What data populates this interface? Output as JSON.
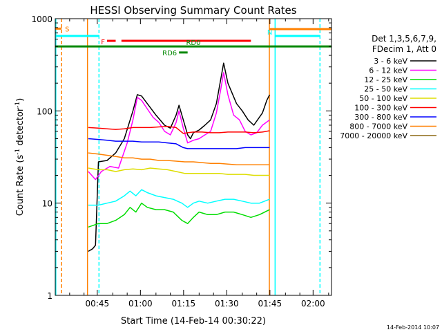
{
  "chart_data": {
    "type": "line",
    "title": "HESSI Observing Summary Count Rates",
    "xlabel": "Start Time (14-Feb-14 00:30:22)",
    "ylabel_parts": {
      "main": "Count Rate (s",
      "sup1": "-1",
      "mid": " detector",
      "sup2": "-1",
      "end": ")"
    },
    "x_unit": "minutes after 00:30:22",
    "xlim": [
      0,
      96
    ],
    "ylim": [
      1,
      1000
    ],
    "yscale": "log",
    "x_ticks": [
      {
        "x": 14.6,
        "label": "00:45"
      },
      {
        "x": 29.6,
        "label": "01:00"
      },
      {
        "x": 44.6,
        "label": "01:15"
      },
      {
        "x": 59.6,
        "label": "01:30"
      },
      {
        "x": 74.6,
        "label": "01:45"
      },
      {
        "x": 89.6,
        "label": "02:00"
      }
    ],
    "y_ticks": [
      {
        "y": 1,
        "label": "1"
      },
      {
        "y": 10,
        "label": "10"
      },
      {
        "y": 100,
        "label": "100"
      },
      {
        "y": 1000,
        "label": "1000"
      }
    ],
    "legend_header": [
      "Det 1,3,5,6,7,9,",
      "FDecim 1, Att 0"
    ],
    "legend_placement": "right",
    "series": [
      {
        "name": "3 - 6 keV",
        "color": "#000000",
        "points": [
          [
            11.5,
            3.0
          ],
          [
            13,
            3.2
          ],
          [
            14,
            3.5
          ],
          [
            15,
            28
          ],
          [
            18,
            29
          ],
          [
            21,
            35
          ],
          [
            24,
            50
          ],
          [
            27,
            100
          ],
          [
            28.5,
            150
          ],
          [
            30,
            145
          ],
          [
            32,
            120
          ],
          [
            35,
            90
          ],
          [
            38,
            70
          ],
          [
            40,
            65
          ],
          [
            42,
            90
          ],
          [
            43,
            115
          ],
          [
            44.5,
            80
          ],
          [
            46,
            55
          ],
          [
            47,
            50
          ],
          [
            48,
            58
          ],
          [
            50,
            62
          ],
          [
            52,
            70
          ],
          [
            54,
            80
          ],
          [
            56,
            120
          ],
          [
            57.5,
            220
          ],
          [
            58.5,
            330
          ],
          [
            60,
            200
          ],
          [
            63,
            120
          ],
          [
            65,
            100
          ],
          [
            67,
            80
          ],
          [
            69,
            70
          ],
          [
            72,
            95
          ],
          [
            73.5,
            130
          ],
          [
            74.5,
            150
          ]
        ]
      },
      {
        "name": "6 - 12 keV",
        "color": "#ff00ff",
        "points": [
          [
            11.5,
            22
          ],
          [
            14,
            18
          ],
          [
            16,
            22
          ],
          [
            19,
            25
          ],
          [
            22,
            24
          ],
          [
            25,
            45
          ],
          [
            27,
            80
          ],
          [
            28.5,
            140
          ],
          [
            30,
            130
          ],
          [
            32,
            105
          ],
          [
            34,
            85
          ],
          [
            36,
            75
          ],
          [
            38,
            60
          ],
          [
            40,
            55
          ],
          [
            42,
            75
          ],
          [
            43,
            100
          ],
          [
            44.5,
            65
          ],
          [
            46,
            45
          ],
          [
            48,
            48
          ],
          [
            50,
            50
          ],
          [
            52,
            55
          ],
          [
            54,
            60
          ],
          [
            56,
            95
          ],
          [
            57.5,
            170
          ],
          [
            58.5,
            260
          ],
          [
            60,
            150
          ],
          [
            62,
            90
          ],
          [
            64,
            80
          ],
          [
            66,
            60
          ],
          [
            68,
            55
          ],
          [
            70,
            58
          ],
          [
            72,
            70
          ],
          [
            74.5,
            80
          ]
        ]
      },
      {
        "name": "12 - 25 keV",
        "color": "#00dd00",
        "points": [
          [
            11.5,
            5.5
          ],
          [
            15,
            6
          ],
          [
            18,
            6
          ],
          [
            21,
            6.5
          ],
          [
            24,
            7.5
          ],
          [
            26,
            9
          ],
          [
            28,
            8
          ],
          [
            30,
            10
          ],
          [
            32,
            9
          ],
          [
            35,
            8.5
          ],
          [
            38,
            8.5
          ],
          [
            41,
            8
          ],
          [
            44,
            6.5
          ],
          [
            46,
            6
          ],
          [
            48,
            7
          ],
          [
            50,
            8
          ],
          [
            53,
            7.5
          ],
          [
            56,
            7.5
          ],
          [
            59,
            8
          ],
          [
            62,
            8
          ],
          [
            65,
            7.5
          ],
          [
            68,
            7
          ],
          [
            71,
            7.5
          ],
          [
            74.5,
            8.5
          ]
        ]
      },
      {
        "name": "25 - 50 keV",
        "color": "#00ffff",
        "points": [
          [
            11.5,
            9.5
          ],
          [
            15,
            9.5
          ],
          [
            18,
            10
          ],
          [
            21,
            10.5
          ],
          [
            24,
            12
          ],
          [
            26,
            13.5
          ],
          [
            28,
            12
          ],
          [
            30,
            14
          ],
          [
            32,
            13
          ],
          [
            35,
            12
          ],
          [
            38,
            11.5
          ],
          [
            41,
            11
          ],
          [
            44,
            10
          ],
          [
            46,
            9
          ],
          [
            48,
            10
          ],
          [
            50,
            10.5
          ],
          [
            53,
            10
          ],
          [
            56,
            10.5
          ],
          [
            59,
            11
          ],
          [
            62,
            11
          ],
          [
            65,
            10.5
          ],
          [
            68,
            10
          ],
          [
            71,
            10
          ],
          [
            74.5,
            11
          ]
        ]
      },
      {
        "name": "50 - 100 keV",
        "color": "#dddd00",
        "points": [
          [
            11.5,
            24
          ],
          [
            15,
            23
          ],
          [
            18,
            23
          ],
          [
            21,
            22
          ],
          [
            24,
            23
          ],
          [
            27,
            23.5
          ],
          [
            30,
            23
          ],
          [
            33,
            24
          ],
          [
            36,
            23.5
          ],
          [
            39,
            23
          ],
          [
            42,
            22
          ],
          [
            45,
            21
          ],
          [
            48,
            21
          ],
          [
            51,
            21
          ],
          [
            54,
            21
          ],
          [
            57,
            21
          ],
          [
            60,
            20.5
          ],
          [
            63,
            20.5
          ],
          [
            66,
            20.5
          ],
          [
            69,
            20
          ],
          [
            72,
            20
          ],
          [
            74.5,
            20
          ]
        ]
      },
      {
        "name": "100 - 300 keV",
        "color": "#ff0000",
        "points": [
          [
            11.5,
            66
          ],
          [
            15,
            65
          ],
          [
            18,
            64
          ],
          [
            21,
            63
          ],
          [
            24,
            64
          ],
          [
            27,
            66
          ],
          [
            30,
            66
          ],
          [
            33,
            66
          ],
          [
            36,
            67
          ],
          [
            39,
            68
          ],
          [
            42,
            66
          ],
          [
            44.5,
            57
          ],
          [
            46,
            58
          ],
          [
            48,
            59
          ],
          [
            51,
            59
          ],
          [
            54,
            58
          ],
          [
            57,
            58
          ],
          [
            60,
            59
          ],
          [
            63,
            59
          ],
          [
            66,
            59
          ],
          [
            69,
            58
          ],
          [
            72,
            59
          ],
          [
            74.5,
            61
          ]
        ]
      },
      {
        "name": "300 - 800 keV",
        "color": "#0000ff",
        "points": [
          [
            11.5,
            50
          ],
          [
            15,
            49
          ],
          [
            18,
            48
          ],
          [
            21,
            47
          ],
          [
            24,
            47
          ],
          [
            27,
            47
          ],
          [
            30,
            46
          ],
          [
            33,
            46
          ],
          [
            36,
            46
          ],
          [
            39,
            45
          ],
          [
            42,
            44
          ],
          [
            44.5,
            40
          ],
          [
            46,
            39
          ],
          [
            48,
            39
          ],
          [
            51,
            39
          ],
          [
            54,
            39
          ],
          [
            57,
            39
          ],
          [
            60,
            39
          ],
          [
            63,
            39
          ],
          [
            66,
            40
          ],
          [
            69,
            40
          ],
          [
            72,
            40
          ],
          [
            74.5,
            40
          ]
        ]
      },
      {
        "name": "800 - 7000 keV",
        "color": "#ff8000",
        "points": [
          [
            11.5,
            35
          ],
          [
            15,
            34
          ],
          [
            18,
            33
          ],
          [
            21,
            32
          ],
          [
            24,
            31
          ],
          [
            27,
            31
          ],
          [
            30,
            30
          ],
          [
            33,
            30
          ],
          [
            36,
            29
          ],
          [
            39,
            29
          ],
          [
            42,
            28.5
          ],
          [
            45,
            28
          ],
          [
            48,
            28
          ],
          [
            51,
            27.5
          ],
          [
            54,
            27
          ],
          [
            57,
            27
          ],
          [
            60,
            26.5
          ],
          [
            63,
            26
          ],
          [
            66,
            26
          ],
          [
            69,
            26
          ],
          [
            72,
            26
          ],
          [
            74.5,
            26
          ]
        ]
      },
      {
        "name": "7000 - 20000 keV",
        "color": "#8b6914",
        "points": []
      }
    ],
    "flag_bars": [
      {
        "label": "S",
        "color": "#ff8000",
        "segments": [
          [
            0,
            2.2
          ]
        ],
        "y": 780
      },
      {
        "label": "N",
        "color": "#00ffff",
        "segments": [
          [
            0,
            15.2
          ],
          [
            76.4,
            92
          ]
        ],
        "y": 650
      },
      {
        "label": "F",
        "color": "#ff0000",
        "segments": [
          [
            18,
            21
          ],
          [
            23,
            68
          ]
        ],
        "y": 575
      },
      {
        "label": "",
        "color": "#ff8000",
        "segments": [
          [
            74.4,
            96
          ]
        ],
        "y": 770
      },
      {
        "label": "RD0",
        "color": "#008800",
        "segments": [
          [
            0,
            96
          ]
        ],
        "y": 500
      },
      {
        "label": "RD6",
        "color": "#008800",
        "segments": [
          [
            43,
            46
          ]
        ],
        "y": 430
      }
    ],
    "vertical_markers": [
      {
        "x": 0.2,
        "color": "#00ffff",
        "style": "solid"
      },
      {
        "x": 2.2,
        "color": "#ff8000",
        "style": "dashed"
      },
      {
        "x": 11.2,
        "color": "#ff8000",
        "style": "solid"
      },
      {
        "x": 15.2,
        "color": "#00ffff",
        "style": "dashed"
      },
      {
        "x": 74.4,
        "color": "#ff8000",
        "style": "solid"
      },
      {
        "x": 76.4,
        "color": "#00ffff",
        "style": "solid"
      },
      {
        "x": 92,
        "color": "#00ffff",
        "style": "dashed"
      }
    ]
  },
  "footer": {
    "timestamp": "14-Feb-2014 10:07"
  }
}
